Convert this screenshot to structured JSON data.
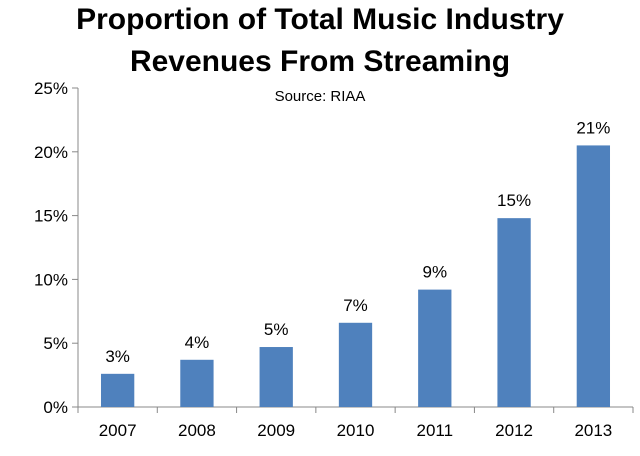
{
  "title_line1": "Proportion of Total Music Industry",
  "title_line2": "Revenues From Streaming",
  "subtitle": "Source: RIAA",
  "colors": {
    "bar": "#4F81BD",
    "axis": "#888888"
  },
  "chart_data": {
    "type": "bar",
    "title": "Proportion of Total Music Industry Revenues From Streaming",
    "subtitle": "Source: RIAA",
    "categories": [
      "2007",
      "2008",
      "2009",
      "2010",
      "2011",
      "2012",
      "2013"
    ],
    "values": [
      2.6,
      3.7,
      4.7,
      6.6,
      9.2,
      14.8,
      20.5
    ],
    "data_labels": [
      "3%",
      "4%",
      "5%",
      "7%",
      "9%",
      "15%",
      "21%"
    ],
    "ylim": [
      0,
      25
    ],
    "yticks": [
      0,
      5,
      10,
      15,
      20,
      25
    ],
    "ytick_labels": [
      "0%",
      "5%",
      "10%",
      "15%",
      "20%",
      "25%"
    ],
    "xlabel": "",
    "ylabel": "",
    "grid": false,
    "legend": "none"
  }
}
